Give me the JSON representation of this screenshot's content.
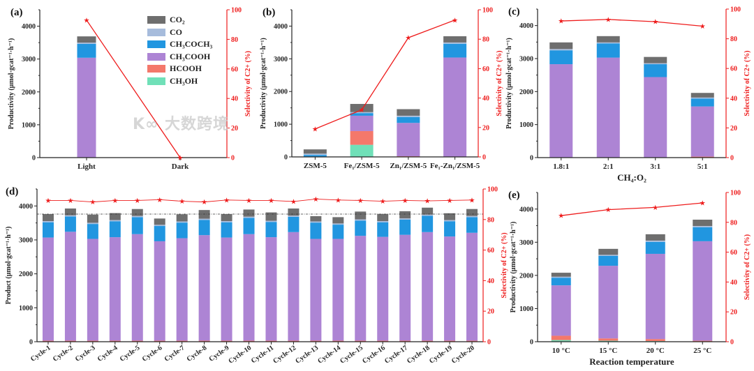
{
  "colors": {
    "CO2": "#6e6e6e",
    "CO": "#a7bcdc",
    "CH3COCH3": "#2196e0",
    "CH3COOH": "#ad84d4",
    "HCOOH": "#f4786b",
    "CH3OH": "#70e0b8",
    "selectivity": "#ee1c1c"
  },
  "legend": [
    {
      "key": "CO2",
      "label": "CO₂"
    },
    {
      "key": "CO",
      "label": "CO"
    },
    {
      "key": "CH3COCH3",
      "label": "CH₃COCH₃"
    },
    {
      "key": "CH3COOH",
      "label": "CH₃COOH"
    },
    {
      "key": "HCOOH",
      "label": "HCOOH"
    },
    {
      "key": "CH3OH",
      "label": "CH₃OH"
    }
  ],
  "watermark": "大数跨境",
  "chart_data": [
    {
      "type": "bar",
      "panel_label": "(a)",
      "categories": [
        "Light",
        "Dark"
      ],
      "ylabel": "Productivity (μmol·gcat⁻¹·h⁻¹)",
      "y2label": "Selectivity of C2+ (%)",
      "xlabel": "",
      "ylim": [
        0,
        4500
      ],
      "yticks": [
        0,
        1000,
        2000,
        3000,
        4000
      ],
      "y2lim": [
        0,
        100
      ],
      "y2ticks": [
        0,
        20,
        40,
        60,
        80,
        100
      ],
      "series": [
        {
          "key": "CH3OH",
          "values": [
            0,
            0
          ]
        },
        {
          "key": "HCOOH",
          "values": [
            10,
            0
          ]
        },
        {
          "key": "CH3COOH",
          "values": [
            3030,
            0
          ]
        },
        {
          "key": "CH3COCH3",
          "values": [
            420,
            0
          ]
        },
        {
          "key": "CO",
          "values": [
            40,
            0
          ]
        },
        {
          "key": "CO2",
          "values": [
            190,
            0
          ]
        }
      ],
      "selectivity": [
        93,
        0
      ]
    },
    {
      "type": "bar",
      "panel_label": "(b)",
      "categories": [
        "ZSM-5",
        "Fe₁/ZSM-5",
        "Zn₁/ZSM-5",
        "Fe₁-Zn₁/ZSM-5"
      ],
      "ylabel": "Productivity (μmol·gcat⁻¹·h⁻¹)",
      "y2label": "Selectivity of C2+ (%)",
      "xlabel": "",
      "ylim": [
        0,
        4500
      ],
      "yticks": [
        0,
        1000,
        2000,
        3000,
        4000
      ],
      "y2lim": [
        0,
        100
      ],
      "y2ticks": [
        0,
        20,
        40,
        60,
        80,
        100
      ],
      "series": [
        {
          "key": "CH3OH",
          "values": [
            0,
            370,
            0,
            0
          ]
        },
        {
          "key": "HCOOH",
          "values": [
            0,
            420,
            20,
            10
          ]
        },
        {
          "key": "CH3COOH",
          "values": [
            0,
            470,
            1020,
            3030
          ]
        },
        {
          "key": "CH3COCH3",
          "values": [
            60,
            80,
            180,
            420
          ]
        },
        {
          "key": "CO",
          "values": [
            40,
            30,
            40,
            40
          ]
        },
        {
          "key": "CO2",
          "values": [
            130,
            250,
            200,
            190
          ]
        }
      ],
      "selectivity": [
        19,
        32,
        81,
        93
      ]
    },
    {
      "type": "bar",
      "panel_label": "(c)",
      "categories": [
        "1.8:1",
        "2:1",
        "3:1",
        "5:1"
      ],
      "ylabel": "Productivity (μmol·gcat⁻¹·h⁻¹)",
      "y2label": "Selectivity of C2+ (%)",
      "xlabel": "CH₄:O₂",
      "ylim": [
        0,
        4500
      ],
      "yticks": [
        0,
        1000,
        2000,
        3000,
        4000
      ],
      "y2lim": [
        0,
        100
      ],
      "y2ticks": [
        0,
        20,
        40,
        60,
        80,
        100
      ],
      "series": [
        {
          "key": "CH3OH",
          "values": [
            0,
            0,
            0,
            0
          ]
        },
        {
          "key": "HCOOH",
          "values": [
            10,
            10,
            10,
            30
          ]
        },
        {
          "key": "CH3COOH",
          "values": [
            2820,
            3020,
            2430,
            1520
          ]
        },
        {
          "key": "CH3COCH3",
          "values": [
            420,
            430,
            390,
            240
          ]
        },
        {
          "key": "CO",
          "values": [
            40,
            30,
            30,
            30
          ]
        },
        {
          "key": "CO2",
          "values": [
            200,
            190,
            190,
            140
          ]
        }
      ],
      "selectivity": [
        92,
        93,
        91.5,
        88.5
      ]
    },
    {
      "type": "bar",
      "panel_label": "(d)",
      "categories": [
        "Cycle-1",
        "Cycle-2",
        "Cycle-3",
        "Cycle-4",
        "Cycle-5",
        "Cycle-6",
        "Cycle-7",
        "Cycle-8",
        "Cycle-9",
        "Cycle-10",
        "Cycle-11",
        "Cycle-12",
        "Cycle-13",
        "Cycle-14",
        "Cycle-15",
        "Cycle-16",
        "Cycle-17",
        "Cycle-18",
        "Cycle-19",
        "Cycle-20"
      ],
      "ylabel": "Product (μmol·gcat⁻¹·h⁻¹)",
      "y2label": "Selectivity of C2+ (%)",
      "xlabel": "",
      "ylim": [
        0,
        4500
      ],
      "yticks": [
        0,
        1000,
        2000,
        3000,
        4000
      ],
      "y2lim": [
        0,
        100
      ],
      "y2ticks": [
        0,
        20,
        40,
        60,
        80,
        100
      ],
      "reference_line": 3760,
      "series": [
        {
          "key": "HCOOH",
          "values": [
            30,
            30,
            30,
            30,
            30,
            30,
            30,
            30,
            30,
            30,
            30,
            30,
            30,
            30,
            30,
            30,
            30,
            30,
            30,
            30
          ]
        },
        {
          "key": "CH3COOH",
          "values": [
            3040,
            3210,
            3000,
            3050,
            3140,
            2930,
            3020,
            3110,
            3040,
            3140,
            3050,
            3200,
            3000,
            3000,
            3090,
            3060,
            3120,
            3200,
            3070,
            3180
          ]
        },
        {
          "key": "CH3COCH3",
          "values": [
            450,
            450,
            440,
            470,
            500,
            450,
            460,
            450,
            450,
            480,
            450,
            450,
            480,
            420,
            450,
            430,
            450,
            480,
            450,
            460
          ]
        },
        {
          "key": "CO",
          "values": [
            35,
            35,
            35,
            35,
            35,
            35,
            35,
            35,
            35,
            35,
            35,
            35,
            35,
            35,
            35,
            35,
            35,
            35,
            35,
            35
          ]
        },
        {
          "key": "CO2",
          "values": [
            205,
            200,
            240,
            205,
            205,
            185,
            210,
            255,
            205,
            210,
            245,
            210,
            155,
            185,
            230,
            210,
            210,
            205,
            200,
            205
          ]
        }
      ],
      "selectivity": [
        92.5,
        92.5,
        91.5,
        92.5,
        92.5,
        93,
        92,
        91.5,
        92.8,
        92.5,
        92.5,
        91.8,
        93.4,
        92.8,
        92.5,
        92,
        92.5,
        92.2,
        92.5,
        92.8
      ]
    },
    {
      "type": "bar",
      "panel_label": "(e)",
      "categories": [
        "10 °C",
        "15 °C",
        "20 °C",
        "25 °C"
      ],
      "ylabel": "Productivity (μmol·gcat⁻¹·h⁻¹)",
      "y2label": "Selectivity of C2+ (%)",
      "xlabel": "Reaction temperature",
      "ylim": [
        0,
        4500
      ],
      "yticks": [
        0,
        1000,
        2000,
        3000,
        4000
      ],
      "y2lim": [
        0,
        100
      ],
      "y2ticks": [
        0,
        20,
        40,
        60,
        80,
        100
      ],
      "series": [
        {
          "key": "CH3OH",
          "values": [
            50,
            30,
            20,
            0
          ]
        },
        {
          "key": "HCOOH",
          "values": [
            130,
            70,
            60,
            30
          ]
        },
        {
          "key": "CH3COOH",
          "values": [
            1520,
            2190,
            2570,
            3000
          ]
        },
        {
          "key": "CH3COCH3",
          "values": [
            230,
            300,
            360,
            420
          ]
        },
        {
          "key": "CO",
          "values": [
            30,
            30,
            40,
            40
          ]
        },
        {
          "key": "CO2",
          "values": [
            120,
            180,
            190,
            190
          ]
        }
      ],
      "selectivity": [
        84.5,
        88.5,
        90,
        93
      ]
    }
  ]
}
